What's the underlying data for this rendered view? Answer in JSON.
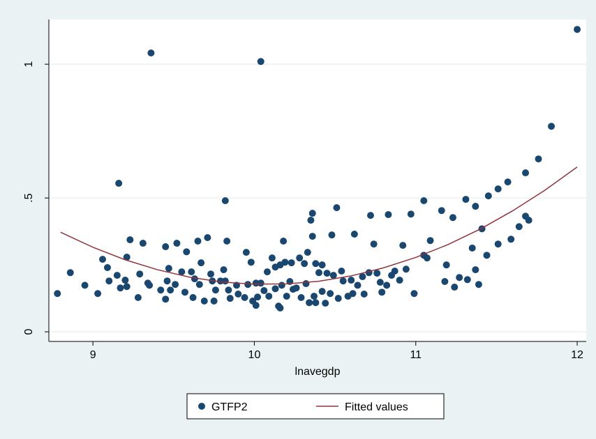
{
  "chart_data": {
    "type": "scatter",
    "xlabel": "lnavegdp",
    "xlim": [
      8.727,
      12.056
    ],
    "ylim": [
      -0.036,
      1.167
    ],
    "xticks": [
      9,
      10,
      11,
      12
    ],
    "yticks": [
      0,
      {
        "value": 0.5,
        "label": ".5"
      },
      1
    ],
    "grid": true,
    "legend": "bottom",
    "series": [
      {
        "name": "GTFP2",
        "type": "scatter",
        "color": "#1a476f",
        "x": [
          8.78,
          8.86,
          8.95,
          9.03,
          9.06,
          9.09,
          9.1,
          9.16,
          9.15,
          9.17,
          9.2,
          9.21,
          9.21,
          9.23,
          9.28,
          9.29,
          9.31,
          9.34,
          9.36,
          9.35,
          9.42,
          9.45,
          9.45,
          9.47,
          9.46,
          9.48,
          9.51,
          9.52,
          9.55,
          9.57,
          9.58,
          9.61,
          9.63,
          9.62,
          9.65,
          9.67,
          9.66,
          9.69,
          9.71,
          9.73,
          9.74,
          9.75,
          9.76,
          9.79,
          9.81,
          9.82,
          9.82,
          9.83,
          9.84,
          9.85,
          9.89,
          9.9,
          9.94,
          9.95,
          9.96,
          9.98,
          9.99,
          10.01,
          10.01,
          10.02,
          10.04,
          10.04,
          10.06,
          10.08,
          10.09,
          10.11,
          10.13,
          10.13,
          10.15,
          10.16,
          10.16,
          10.17,
          10.18,
          10.19,
          10.2,
          10.22,
          10.23,
          10.24,
          10.26,
          10.28,
          10.29,
          10.31,
          10.32,
          10.33,
          10.34,
          10.35,
          10.36,
          10.36,
          10.37,
          10.38,
          10.38,
          10.4,
          10.42,
          10.42,
          10.44,
          10.45,
          10.47,
          10.48,
          10.49,
          10.51,
          10.52,
          10.54,
          10.55,
          10.58,
          10.6,
          10.61,
          10.62,
          10.64,
          10.67,
          10.68,
          10.71,
          10.72,
          10.74,
          10.76,
          10.78,
          10.79,
          10.82,
          10.83,
          10.85,
          10.87,
          10.9,
          10.92,
          10.94,
          10.97,
          10.99,
          11.05,
          11.05,
          11.07,
          11.09,
          11.16,
          11.18,
          11.19,
          11.23,
          11.24,
          11.27,
          11.31,
          11.32,
          11.35,
          11.37,
          11.37,
          11.39,
          11.41,
          11.44,
          11.45,
          11.51,
          11.51,
          11.57,
          11.59,
          11.64,
          11.68,
          11.68,
          11.7,
          11.76,
          11.84,
          12.0
        ],
        "values": [
          0.143,
          0.221,
          0.174,
          0.143,
          0.271,
          0.24,
          0.19,
          0.555,
          0.211,
          0.164,
          0.193,
          0.169,
          0.279,
          0.344,
          0.128,
          0.216,
          0.331,
          0.182,
          1.042,
          0.174,
          0.156,
          0.122,
          0.318,
          0.237,
          0.19,
          0.156,
          0.177,
          0.331,
          0.224,
          0.148,
          0.299,
          0.224,
          0.198,
          0.128,
          0.339,
          0.258,
          0.177,
          0.115,
          0.352,
          0.216,
          0.19,
          0.115,
          0.156,
          0.19,
          0.232,
          0.49,
          0.19,
          0.339,
          0.156,
          0.125,
          0.174,
          0.141,
          0.128,
          0.297,
          0.177,
          0.26,
          0.115,
          0.182,
          0.099,
          0.13,
          1.01,
          0.182,
          0.154,
          0.224,
          0.133,
          0.276,
          0.161,
          0.242,
          0.096,
          0.25,
          0.089,
          0.174,
          0.339,
          0.26,
          0.133,
          0.188,
          0.258,
          0.159,
          0.164,
          0.276,
          0.128,
          0.255,
          0.18,
          0.297,
          0.109,
          0.417,
          0.443,
          0.357,
          0.133,
          0.255,
          0.109,
          0.221,
          0.25,
          0.151,
          0.107,
          0.219,
          0.143,
          0.362,
          0.211,
          0.464,
          0.125,
          0.227,
          0.19,
          0.133,
          0.193,
          0.143,
          0.365,
          0.174,
          0.206,
          0.141,
          0.221,
          0.435,
          0.328,
          0.219,
          0.185,
          0.148,
          0.174,
          0.438,
          0.211,
          0.227,
          0.193,
          0.323,
          0.234,
          0.44,
          0.143,
          0.286,
          0.49,
          0.276,
          0.341,
          0.453,
          0.188,
          0.25,
          0.427,
          0.167,
          0.203,
          0.495,
          0.195,
          0.313,
          0.232,
          0.469,
          0.177,
          0.385,
          0.286,
          0.508,
          0.534,
          0.328,
          0.56,
          0.346,
          0.393,
          0.594,
          0.432,
          0.417,
          0.646,
          0.768,
          1.13
        ]
      },
      {
        "name": "Fitted values",
        "type": "line",
        "color": "#90353b",
        "x": [
          8.8,
          9.0,
          9.2,
          9.4,
          9.6,
          9.8,
          10.0,
          10.2,
          10.4,
          10.6,
          10.8,
          11.0,
          11.2,
          11.4,
          11.6,
          11.8,
          12.0
        ],
        "values": [
          0.372,
          0.316,
          0.269,
          0.232,
          0.204,
          0.186,
          0.178,
          0.179,
          0.189,
          0.209,
          0.239,
          0.278,
          0.326,
          0.384,
          0.452,
          0.529,
          0.616
        ]
      }
    ]
  }
}
